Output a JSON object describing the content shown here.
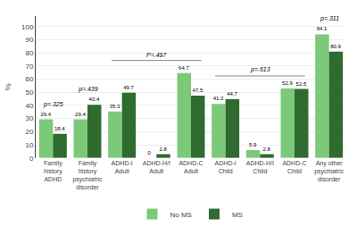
{
  "chart_data": {
    "type": "bar",
    "categories": [
      "Family\nhistory\nADHD",
      "Family\nhistory\npsychiatric\ndisorder",
      "ADHD-I\nAdult",
      "ADHD-H/I\nAdult",
      "ADHD-C\nAdult",
      "ADHD-I\nChild",
      "ADHD-H/I\nChild",
      "ADHD-C\nChild",
      "Any other\npsychiatric\ndisorder"
    ],
    "series": [
      {
        "name": "No MS",
        "color": "#7dc97a",
        "values": [
          29.4,
          29.4,
          35.3,
          0,
          64.7,
          41.2,
          5.9,
          52.9,
          94.1
        ]
      },
      {
        "name": "MS",
        "color": "#2e6b2e",
        "values": [
          18.4,
          40.4,
          49.7,
          2.8,
          47.5,
          44.7,
          2.8,
          52.5,
          80.9
        ]
      }
    ],
    "ylabel": "%",
    "ylim": [
      0,
      108
    ],
    "yticks": [
      0,
      10,
      20,
      30,
      40,
      50,
      60,
      70,
      80,
      90,
      100
    ],
    "grid": true,
    "data_labels": true,
    "legend": "bottom",
    "annotations": [
      {
        "text": "p=.325",
        "categories": [
          "Family\nhistory\nADHD"
        ]
      },
      {
        "text": "p=.439",
        "categories": [
          "Family\nhistory\npsychiatric\ndisorder"
        ]
      },
      {
        "text": "P=.497",
        "categories": [
          "ADHD-I\nAdult",
          "ADHD-H/I\nAdult",
          "ADHD-C\nAdult"
        ]
      },
      {
        "text": "p=.613",
        "categories": [
          "ADHD-I\nChild",
          "ADHD-H/I\nChild",
          "ADHD-C\nChild"
        ]
      },
      {
        "text": "p=.311",
        "categories": [
          "Any other\npsychiatric\ndisorder"
        ]
      }
    ]
  }
}
